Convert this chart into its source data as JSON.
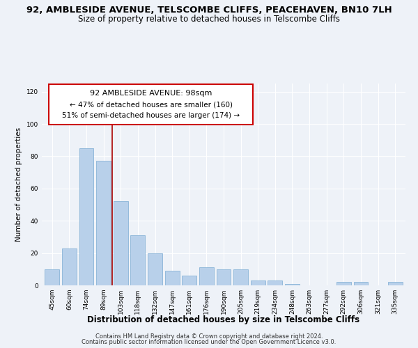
{
  "title": "92, AMBLESIDE AVENUE, TELSCOMBE CLIFFS, PEACEHAVEN, BN10 7LH",
  "subtitle": "Size of property relative to detached houses in Telscombe Cliffs",
  "xlabel": "Distribution of detached houses by size in Telscombe Cliffs",
  "ylabel": "Number of detached properties",
  "categories": [
    "45sqm",
    "60sqm",
    "74sqm",
    "89sqm",
    "103sqm",
    "118sqm",
    "132sqm",
    "147sqm",
    "161sqm",
    "176sqm",
    "190sqm",
    "205sqm",
    "219sqm",
    "234sqm",
    "248sqm",
    "263sqm",
    "277sqm",
    "292sqm",
    "306sqm",
    "321sqm",
    "335sqm"
  ],
  "values": [
    10,
    23,
    85,
    77,
    52,
    31,
    20,
    9,
    6,
    11,
    10,
    10,
    3,
    3,
    1,
    0,
    0,
    2,
    2,
    0,
    2
  ],
  "bar_color": "#b8d0ea",
  "bar_edge_color": "#8ab4d8",
  "vline_pos": 3.5,
  "vline_color": "#aa0000",
  "ylim": [
    0,
    125
  ],
  "yticks": [
    0,
    20,
    40,
    60,
    80,
    100,
    120
  ],
  "annotation_title": "92 AMBLESIDE AVENUE: 98sqm",
  "annotation_line1": "← 47% of detached houses are smaller (160)",
  "annotation_line2": "51% of semi-detached houses are larger (174) →",
  "annotation_box_color": "#ffffff",
  "annotation_box_edge": "#cc0000",
  "footer1": "Contains HM Land Registry data © Crown copyright and database right 2024.",
  "footer2": "Contains public sector information licensed under the Open Government Licence v3.0.",
  "background_color": "#eef2f8",
  "grid_color": "#ffffff",
  "title_fontsize": 9.5,
  "subtitle_fontsize": 8.5,
  "xlabel_fontsize": 8.5,
  "ylabel_fontsize": 7.5,
  "tick_fontsize": 6.5,
  "footer_fontsize": 6.0,
  "ann_title_fontsize": 8,
  "ann_text_fontsize": 7.5
}
